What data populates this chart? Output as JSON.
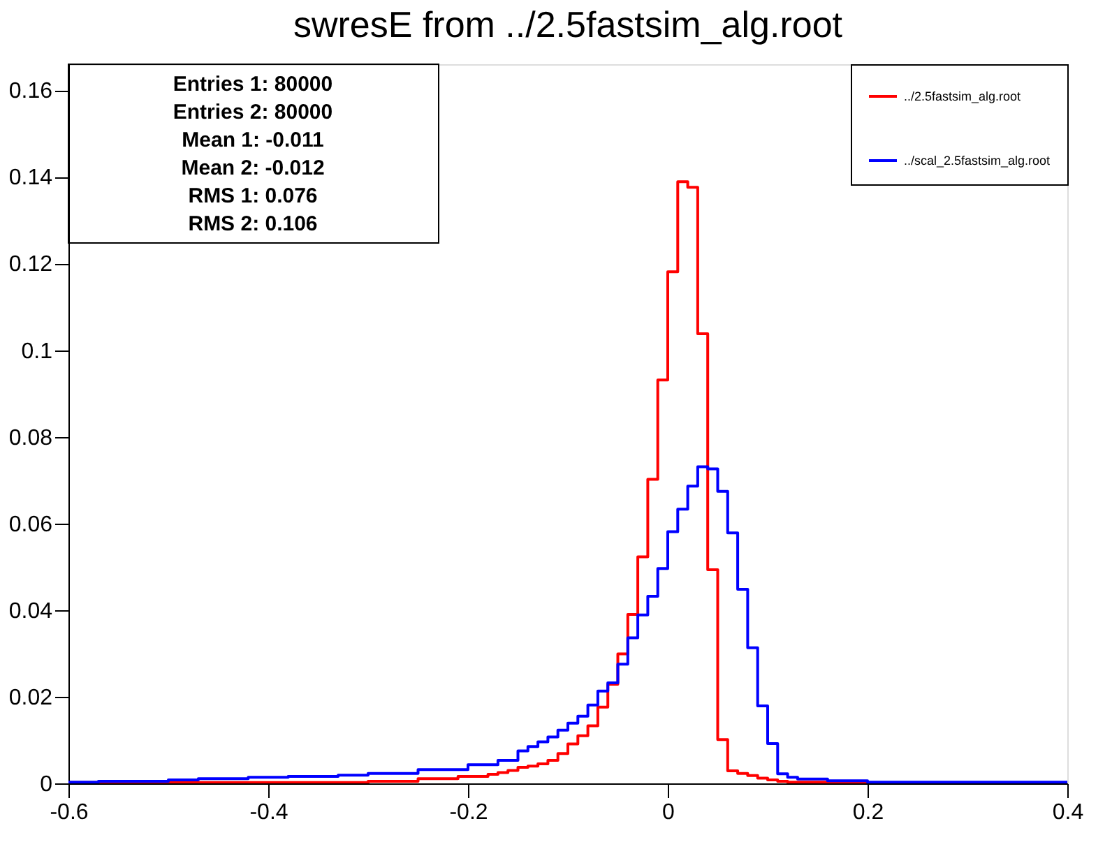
{
  "chart_data": {
    "type": "histogram",
    "title": "swresE from ../2.5fastsim_alg.root",
    "bins": [
      -0.6,
      -0.59,
      -0.58,
      -0.57,
      -0.56,
      -0.55,
      -0.54,
      -0.53,
      -0.52,
      -0.51,
      -0.5,
      -0.49,
      -0.48,
      -0.47,
      -0.46,
      -0.45,
      -0.44,
      -0.43,
      -0.42,
      -0.41,
      -0.4,
      -0.39,
      -0.38,
      -0.37,
      -0.36,
      -0.35,
      -0.34,
      -0.33,
      -0.32,
      -0.31,
      -0.3,
      -0.29,
      -0.28,
      -0.27,
      -0.26,
      -0.25,
      -0.24,
      -0.23,
      -0.22,
      -0.21,
      -0.2,
      -0.19,
      -0.18,
      -0.17,
      -0.16,
      -0.15,
      -0.14,
      -0.13,
      -0.12,
      -0.11,
      -0.1,
      -0.09,
      -0.08,
      -0.07,
      -0.06,
      -0.05,
      -0.04,
      -0.03,
      -0.02,
      -0.01,
      0,
      0.01,
      0.02,
      0.03,
      0.04,
      0.05,
      0.06,
      0.07,
      0.08,
      0.09,
      0.1,
      0.11,
      0.12,
      0.13,
      0.14,
      0.15,
      0.16,
      0.17,
      0.18,
      0.19,
      0.2,
      0.21,
      0.22,
      0.23,
      0.24,
      0.25,
      0.26,
      0.27,
      0.28,
      0.29,
      0.3,
      0.31,
      0.32,
      0.33,
      0.34,
      0.35,
      0.36,
      0.37,
      0.38,
      0.39,
      0.4
    ],
    "series": [
      {
        "name": "../2.5fastsim_alg.root",
        "color": "#ff0000",
        "values": [
          0.0002,
          0.0002,
          0.0002,
          0.0002,
          0.0002,
          0.0002,
          0.0002,
          0.0002,
          0.0002,
          0.0002,
          0.0002,
          0.0002,
          0.0002,
          0.0002,
          0.0002,
          0.0002,
          0.0002,
          0.0002,
          0.0002,
          0.0002,
          0.0002,
          0.0002,
          0.0002,
          0.0002,
          0.0002,
          0.0002,
          0.0002,
          0.0002,
          0.0002,
          0.0002,
          0.0005,
          0.0005,
          0.0005,
          0.0005,
          0.0005,
          0.0011,
          0.0011,
          0.0011,
          0.0011,
          0.0016,
          0.0016,
          0.0016,
          0.0021,
          0.0025,
          0.003,
          0.0037,
          0.004,
          0.0045,
          0.0053,
          0.0069,
          0.0091,
          0.011,
          0.0133,
          0.0176,
          0.0229,
          0.0299,
          0.039,
          0.0523,
          0.0702,
          0.0931,
          0.1181,
          0.1389,
          0.1376,
          0.1038,
          0.0493,
          0.0101,
          0.0029,
          0.0023,
          0.0018,
          0.0012,
          0.0008,
          0.0005,
          0.0003,
          0.0003,
          0.0003,
          0.0003,
          0.0003,
          0.0003,
          0,
          0,
          0,
          0,
          0,
          0,
          0,
          0,
          0,
          0,
          0,
          0,
          0,
          0,
          0,
          0,
          0,
          0,
          0,
          0,
          0,
          0
        ]
      },
      {
        "name": "../scal_2.5fastsim_alg.root",
        "color": "#0000ff",
        "values": [
          0.0003,
          0.0003,
          0.0003,
          0.0005,
          0.0005,
          0.0005,
          0.0005,
          0.0005,
          0.0005,
          0.0005,
          0.0008,
          0.0008,
          0.0008,
          0.0011,
          0.0011,
          0.0011,
          0.0011,
          0.0011,
          0.0014,
          0.0014,
          0.0014,
          0.0014,
          0.0016,
          0.0016,
          0.0016,
          0.0016,
          0.0016,
          0.0019,
          0.0019,
          0.0019,
          0.0023,
          0.0023,
          0.0023,
          0.0023,
          0.0023,
          0.0032,
          0.0032,
          0.0032,
          0.0032,
          0.0032,
          0.0043,
          0.0043,
          0.0043,
          0.0053,
          0.0053,
          0.0075,
          0.0085,
          0.0096,
          0.0107,
          0.0123,
          0.0139,
          0.0155,
          0.0181,
          0.0213,
          0.0232,
          0.0275,
          0.0336,
          0.0389,
          0.0432,
          0.0496,
          0.0581,
          0.0633,
          0.0686,
          0.0731,
          0.0726,
          0.0674,
          0.0578,
          0.0448,
          0.0313,
          0.0179,
          0.0092,
          0.0022,
          0.0014,
          0.001,
          0.001,
          0.001,
          0.0006,
          0.0006,
          0.0006,
          0.0006,
          0.0003,
          0.0003,
          0.0003,
          0.0003,
          0.0003,
          0.0003,
          0.0003,
          0.0003,
          0.0003,
          0.0003,
          0.0003,
          0.0003,
          0.0003,
          0.0003,
          0.0003,
          0.0003,
          0.0003,
          0.0003,
          0.0003,
          0.0003
        ]
      }
    ],
    "xlim": [
      -0.6,
      0.4
    ],
    "xticks": [
      -0.6,
      -0.4,
      -0.2,
      0,
      0.2,
      0.4
    ],
    "ylim": [
      0,
      0.166
    ],
    "yticks": [
      0,
      0.02,
      0.04,
      0.06,
      0.08,
      0.1,
      0.12,
      0.14,
      0.16
    ],
    "grid": false,
    "legend": "top right",
    "annotations": [
      "Entries 1: 80000",
      "Entries 2: 80000",
      "Mean 1: -0.011",
      "Mean 2: -0.012",
      "RMS 1: 0.076",
      "RMS 2: 0.106"
    ]
  }
}
